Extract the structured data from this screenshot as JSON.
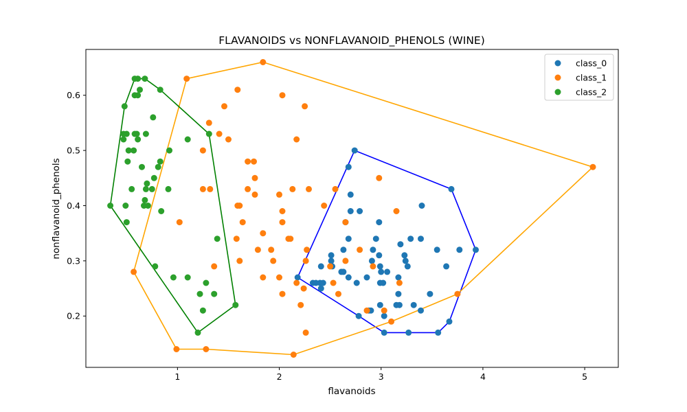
{
  "chart_data": {
    "type": "scatter",
    "title": "FLAVANOIDS vs NONFLAVANOID_PHENOLS (WINE)",
    "xlabel": "flavanoids",
    "ylabel": "nonflavanoid_phenols",
    "xlim": [
      0.1,
      5.33
    ],
    "ylim": [
      0.107,
      0.683
    ],
    "xticks": [
      1,
      2,
      3,
      4,
      5
    ],
    "yticks": [
      0.2,
      0.3,
      0.4,
      0.5,
      0.6
    ],
    "xtick_labels": [
      "1",
      "2",
      "3",
      "4",
      "5"
    ],
    "ytick_labels": [
      "0.2",
      "0.3",
      "0.4",
      "0.5",
      "0.6"
    ],
    "grid": false,
    "legend_position": "top-right",
    "series": [
      {
        "name": "class_0",
        "color": "#1f77b4",
        "hull_color": "#0000ff",
        "points": [
          [
            2.18,
            0.27
          ],
          [
            2.74,
            0.5
          ],
          [
            3.69,
            0.43
          ],
          [
            3.93,
            0.32
          ],
          [
            3.67,
            0.19
          ],
          [
            3.56,
            0.17
          ],
          [
            3.27,
            0.17
          ],
          [
            3.03,
            0.17
          ],
          [
            2.78,
            0.2
          ],
          [
            2.68,
            0.47
          ],
          [
            2.7,
            0.42
          ],
          [
            2.7,
            0.39
          ],
          [
            2.79,
            0.39
          ],
          [
            3.4,
            0.4
          ],
          [
            2.65,
            0.37
          ],
          [
            2.98,
            0.37
          ],
          [
            2.68,
            0.34
          ],
          [
            2.95,
            0.34
          ],
          [
            3.29,
            0.34
          ],
          [
            3.39,
            0.34
          ],
          [
            3.19,
            0.33
          ],
          [
            2.63,
            0.32
          ],
          [
            2.92,
            0.32
          ],
          [
            3.55,
            0.32
          ],
          [
            3.77,
            0.32
          ],
          [
            2.51,
            0.31
          ],
          [
            2.98,
            0.31
          ],
          [
            3.23,
            0.31
          ],
          [
            2.51,
            0.3
          ],
          [
            2.91,
            0.3
          ],
          [
            3.24,
            0.3
          ],
          [
            2.41,
            0.29
          ],
          [
            2.52,
            0.29
          ],
          [
            2.99,
            0.29
          ],
          [
            3.26,
            0.29
          ],
          [
            3.64,
            0.29
          ],
          [
            2.61,
            0.28
          ],
          [
            2.63,
            0.28
          ],
          [
            3.0,
            0.28
          ],
          [
            3.06,
            0.28
          ],
          [
            2.68,
            0.27
          ],
          [
            2.86,
            0.27
          ],
          [
            3.17,
            0.27
          ],
          [
            2.33,
            0.26
          ],
          [
            2.36,
            0.26
          ],
          [
            2.4,
            0.26
          ],
          [
            2.43,
            0.26
          ],
          [
            2.76,
            0.26
          ],
          [
            2.99,
            0.26
          ],
          [
            3.02,
            0.26
          ],
          [
            2.41,
            0.25
          ],
          [
            3.17,
            0.24
          ],
          [
            3.48,
            0.24
          ],
          [
            2.99,
            0.22
          ],
          [
            3.15,
            0.22
          ],
          [
            3.18,
            0.22
          ],
          [
            3.32,
            0.22
          ],
          [
            2.88,
            0.21
          ],
          [
            2.9,
            0.21
          ],
          [
            3.39,
            0.21
          ],
          [
            3.03,
            0.2
          ]
        ],
        "hull": [
          [
            2.18,
            0.27
          ],
          [
            2.74,
            0.5
          ],
          [
            3.69,
            0.43
          ],
          [
            3.93,
            0.32
          ],
          [
            3.67,
            0.19
          ],
          [
            3.56,
            0.17
          ],
          [
            3.03,
            0.17
          ],
          [
            2.78,
            0.2
          ],
          [
            2.18,
            0.27
          ]
        ]
      },
      {
        "name": "class_1",
        "color": "#ff7f0e",
        "hull_color": "#ffa500",
        "points": [
          [
            1.84,
            0.66
          ],
          [
            1.09,
            0.63
          ],
          [
            1.59,
            0.61
          ],
          [
            2.03,
            0.6
          ],
          [
            1.46,
            0.58
          ],
          [
            2.25,
            0.58
          ],
          [
            1.31,
            0.55
          ],
          [
            1.41,
            0.53
          ],
          [
            1.5,
            0.52
          ],
          [
            2.17,
            0.52
          ],
          [
            1.25,
            0.5
          ],
          [
            1.69,
            0.48
          ],
          [
            1.75,
            0.48
          ],
          [
            2.98,
            0.45
          ],
          [
            1.76,
            0.45
          ],
          [
            1.25,
            0.43
          ],
          [
            1.32,
            0.43
          ],
          [
            1.69,
            0.43
          ],
          [
            2.13,
            0.43
          ],
          [
            2.29,
            0.43
          ],
          [
            2.55,
            0.43
          ],
          [
            1.76,
            0.42
          ],
          [
            2.0,
            0.42
          ],
          [
            1.59,
            0.4
          ],
          [
            1.61,
            0.4
          ],
          [
            2.44,
            0.4
          ],
          [
            2.03,
            0.39
          ],
          [
            3.15,
            0.39
          ],
          [
            1.02,
            0.37
          ],
          [
            1.64,
            0.37
          ],
          [
            2.03,
            0.37
          ],
          [
            2.65,
            0.37
          ],
          [
            1.84,
            0.35
          ],
          [
            1.58,
            0.34
          ],
          [
            2.09,
            0.34
          ],
          [
            2.11,
            0.34
          ],
          [
            1.79,
            0.32
          ],
          [
            1.92,
            0.32
          ],
          [
            2.27,
            0.32
          ],
          [
            2.79,
            0.32
          ],
          [
            1.94,
            0.3
          ],
          [
            1.61,
            0.3
          ],
          [
            2.26,
            0.3
          ],
          [
            2.65,
            0.3
          ],
          [
            1.36,
            0.29
          ],
          [
            2.5,
            0.29
          ],
          [
            2.92,
            0.29
          ],
          [
            1.84,
            0.27
          ],
          [
            2.0,
            0.27
          ],
          [
            2.17,
            0.26
          ],
          [
            2.53,
            0.26
          ],
          [
            3.18,
            0.26
          ],
          [
            2.24,
            0.25
          ],
          [
            2.58,
            0.24
          ],
          [
            2.03,
            0.24
          ],
          [
            2.21,
            0.22
          ],
          [
            2.86,
            0.21
          ],
          [
            3.03,
            0.21
          ],
          [
            2.26,
            0.17
          ],
          [
            3.1,
            0.19
          ],
          [
            3.75,
            0.24
          ],
          [
            0.57,
            0.28
          ],
          [
            0.99,
            0.14
          ],
          [
            1.28,
            0.14
          ],
          [
            2.14,
            0.13
          ],
          [
            5.08,
            0.47
          ]
        ],
        "hull": [
          [
            1.84,
            0.66
          ],
          [
            5.08,
            0.47
          ],
          [
            3.75,
            0.24
          ],
          [
            3.1,
            0.19
          ],
          [
            2.14,
            0.13
          ],
          [
            1.28,
            0.14
          ],
          [
            0.99,
            0.14
          ],
          [
            0.57,
            0.28
          ],
          [
            1.09,
            0.63
          ],
          [
            1.84,
            0.66
          ]
        ]
      },
      {
        "name": "class_2",
        "color": "#2ca02c",
        "hull_color": "#008000",
        "points": [
          [
            0.58,
            0.63
          ],
          [
            0.61,
            0.63
          ],
          [
            0.68,
            0.63
          ],
          [
            0.63,
            0.61
          ],
          [
            0.83,
            0.61
          ],
          [
            0.58,
            0.6
          ],
          [
            0.61,
            0.6
          ],
          [
            0.48,
            0.58
          ],
          [
            0.76,
            0.56
          ],
          [
            0.47,
            0.53
          ],
          [
            0.5,
            0.53
          ],
          [
            0.58,
            0.53
          ],
          [
            0.6,
            0.53
          ],
          [
            0.69,
            0.53
          ],
          [
            1.31,
            0.53
          ],
          [
            0.47,
            0.52
          ],
          [
            0.61,
            0.52
          ],
          [
            1.1,
            0.52
          ],
          [
            0.52,
            0.5
          ],
          [
            0.57,
            0.5
          ],
          [
            0.92,
            0.5
          ],
          [
            0.51,
            0.48
          ],
          [
            0.83,
            0.48
          ],
          [
            0.65,
            0.47
          ],
          [
            0.81,
            0.47
          ],
          [
            0.77,
            0.45
          ],
          [
            0.7,
            0.44
          ],
          [
            0.55,
            0.43
          ],
          [
            0.69,
            0.43
          ],
          [
            0.75,
            0.43
          ],
          [
            0.91,
            0.43
          ],
          [
            0.68,
            0.41
          ],
          [
            0.34,
            0.4
          ],
          [
            0.49,
            0.4
          ],
          [
            0.67,
            0.4
          ],
          [
            0.71,
            0.4
          ],
          [
            0.84,
            0.39
          ],
          [
            0.5,
            0.37
          ],
          [
            1.39,
            0.34
          ],
          [
            0.78,
            0.29
          ],
          [
            0.96,
            0.27
          ],
          [
            1.1,
            0.27
          ],
          [
            1.28,
            0.26
          ],
          [
            1.22,
            0.24
          ],
          [
            1.36,
            0.24
          ],
          [
            1.57,
            0.22
          ],
          [
            1.25,
            0.21
          ],
          [
            1.2,
            0.17
          ]
        ],
        "hull": [
          [
            0.58,
            0.63
          ],
          [
            0.68,
            0.63
          ],
          [
            0.83,
            0.61
          ],
          [
            1.31,
            0.53
          ],
          [
            1.57,
            0.22
          ],
          [
            1.2,
            0.17
          ],
          [
            0.34,
            0.4
          ],
          [
            0.48,
            0.58
          ],
          [
            0.58,
            0.63
          ]
        ]
      }
    ]
  }
}
